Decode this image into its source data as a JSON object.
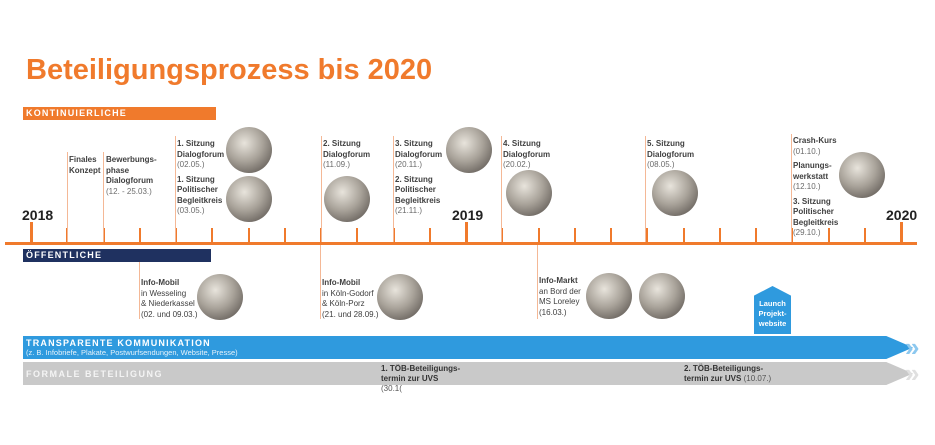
{
  "title": "Beteiligungsprozess bis 2020",
  "sections": {
    "kontinuierlich": "KONTINUIERLICHE GREMIENARBEIT",
    "oeffentlich": "ÖFFENTLICHE VERANSTALTUNGEN",
    "transparent": "TRANSPARENTE KOMMUNIKATION",
    "transparent_sub": "(z. B. Infobriefe, Plakate, Postwurfsendungen, Website, Presse)",
    "formal": "FORMALE BETEILIGUNG"
  },
  "years": [
    "2018",
    "2019",
    "2020"
  ],
  "events_top": [
    {
      "title": "Finales Konzept"
    },
    {
      "title": "Bewerbungs-phase",
      "sub": "Dialogforum",
      "date": "(12. - 25.03.)"
    },
    {
      "title": "1. Sitzung Dialogforum",
      "date": "(02.05.)",
      "title2": "1. Sitzung Politischer Begleitkreis",
      "date2": "(03.05.)"
    },
    {
      "title": "2. Sitzung Dialogforum",
      "date": "(11.09.)"
    },
    {
      "title": "3. Sitzung Dialogforum",
      "date": "(20.11.)",
      "title2": "2. Sitzung Politischer Begleitkreis",
      "date2": "(21.11.)"
    },
    {
      "title": "4. Sitzung Dialogforum",
      "date": "(20.02.)"
    },
    {
      "title": "5. Sitzung Dialogforum",
      "date": "(08.05.)"
    },
    {
      "title": "Crash-Kurs",
      "date": "(01.10.)",
      "title2": "Planungs-werkstatt",
      "date2": "(12.10.)",
      "title3": "3. Sitzung Politischer Begleitkreis",
      "date3": "(29.10.)"
    }
  ],
  "events_bottom": [
    {
      "title": "Info-Mobil",
      "l1": "in Wesseling",
      "l2": "& Niederkassel",
      "date": "(02. und 09.03.)"
    },
    {
      "title": "Info-Mobil",
      "l1": "in Köln-Godorf",
      "l2": "& Köln-Porz",
      "date": "(21. und 28.09.)"
    },
    {
      "title": "Info-Markt",
      "l1": "an Bord der",
      "l2": "MS Loreley",
      "date": "(16.03.)"
    }
  ],
  "launch": "Launch Projekt-website",
  "toeb": [
    {
      "title": "1. TÖB-Beteiligungs-termin zur UVS",
      "date": "(30.1("
    },
    {
      "title": "2. TÖB-Beteiligungs-termin zur UVS",
      "date": "(10.07.)"
    }
  ],
  "colors": {
    "orange": "#f07a2c",
    "navy": "#1f3160",
    "blue": "#2f9ade",
    "gray": "#c9c9c9"
  }
}
